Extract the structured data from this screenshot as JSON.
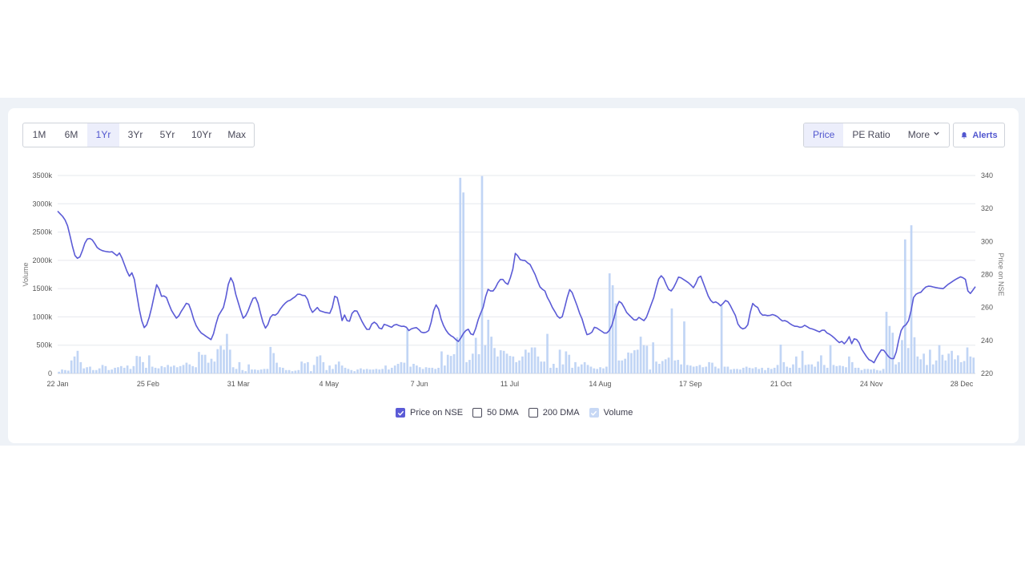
{
  "toolbar": {
    "ranges": [
      "1M",
      "6M",
      "1Yr",
      "3Yr",
      "5Yr",
      "10Yr",
      "Max"
    ],
    "active_range": "1Yr",
    "metrics": {
      "price": "Price",
      "pe": "PE Ratio",
      "more": "More"
    },
    "alerts_label": "Alerts"
  },
  "legend": {
    "price": "Price on NSE",
    "dma50": "50 DMA",
    "dma200": "200 DMA",
    "volume": "Volume"
  },
  "colors": {
    "price_line": "#5b5bd6",
    "volume_bar": "#c1d5f5",
    "accent": "#5257cf"
  },
  "chart_data": {
    "type": "line",
    "x_ticks": [
      "22 Jan",
      "25 Feb",
      "31 Mar",
      "4 May",
      "7 Jun",
      "11 Jul",
      "14 Aug",
      "17 Sep",
      "21 Oct",
      "24 Nov",
      "28 Dec"
    ],
    "y_left": {
      "label": "Volume",
      "ticks": [
        "0",
        "500k",
        "1000k",
        "1500k",
        "2000k",
        "2500k",
        "3000k",
        "3500k"
      ],
      "range": [
        0,
        3500
      ]
    },
    "y_right": {
      "label": "Price on NSE",
      "ticks": [
        "220",
        "240",
        "260",
        "280",
        "300",
        "320",
        "340"
      ],
      "range": [
        220,
        340
      ]
    },
    "series": [
      {
        "name": "Price on NSE",
        "axis": "right",
        "values": [
          318.4,
          316.8,
          315.2,
          313.0,
          309.5,
          303.5,
          297.0,
          291.5,
          289.8,
          290.7,
          294.5,
          299.0,
          301.5,
          301.8,
          301.0,
          298.8,
          296.3,
          295.2,
          294.5,
          294.1,
          293.8,
          293.6,
          293.8,
          292.6,
          291.4,
          293.0,
          290.0,
          286.0,
          282.0,
          279.0,
          281.0,
          277.0,
          268.0,
          259.0,
          252.0,
          247.8,
          249.5,
          254.0,
          260.0,
          267.0,
          273.8,
          271.3,
          266.8,
          267.0,
          266.0,
          262.0,
          258.3,
          255.8,
          253.5,
          255.0,
          257.7,
          260.0,
          262.5,
          262.0,
          258.0,
          252.8,
          249.0,
          246.5,
          244.6,
          243.6,
          242.5,
          241.5,
          240.5,
          244.0,
          250.0,
          255.0,
          257.5,
          260.0,
          266.0,
          274.0,
          278.0,
          275.0,
          268.0,
          263.0,
          258.0,
          253.5,
          255.0,
          258.0,
          262.0,
          265.5,
          266.0,
          262.5,
          256.5,
          251.0,
          247.5,
          249.7,
          254.0,
          255.6,
          255.3,
          256.6,
          259.0,
          261.0,
          262.6,
          263.8,
          264.4,
          265.5,
          266.5,
          268.0,
          268.0,
          267.3,
          267.2,
          265.0,
          260.0,
          257.0,
          258.5,
          260.0,
          258.0,
          257.5,
          257.0,
          256.8,
          256.5,
          260.0,
          266.8,
          266.0,
          260.0,
          252.0,
          255.4,
          252.0,
          251.7,
          256.4,
          258.0,
          257.8,
          254.8,
          251.7,
          249.0,
          246.7,
          246.7,
          250.0,
          251.1,
          250.0,
          247.5,
          247.0,
          249.8,
          249.3,
          248.6,
          248.0,
          249.3,
          249.7,
          249.0,
          248.5,
          248.6,
          248.0,
          246.0,
          247.0,
          247.5,
          247.8,
          246.6,
          245.0,
          244.7,
          245.0,
          246.0,
          251.0,
          258.0,
          261.6,
          259.0,
          253.0,
          249.0,
          246.2,
          244.1,
          242.9,
          242.0,
          240.5,
          239.4,
          241.5,
          244.2,
          246.0,
          246.8,
          244.0,
          243.4,
          247.2,
          252.5,
          256.5,
          260.0,
          266.5,
          271.0,
          270.0,
          270.0,
          272.0,
          275.0,
          277.0,
          277.0,
          275.0,
          274.0,
          278.0,
          283.2,
          292.8,
          291.3,
          289.0,
          288.6,
          288.4,
          287.0,
          286.0,
          283.0,
          280.0,
          276.0,
          272.5,
          271.0,
          270.0,
          266.0,
          263.3,
          260.0,
          257.5,
          254.8,
          253.5,
          254.4,
          260.0,
          266.0,
          270.8,
          269.0,
          265.0,
          261.0,
          256.5,
          253.0,
          248.0,
          243.5,
          244.0,
          245.0,
          248.0,
          247.5,
          246.5,
          245.5,
          244.5,
          244.5,
          246.0,
          249.0,
          254.0,
          260.3,
          263.7,
          262.6,
          260.0,
          257.0,
          255.5,
          254.0,
          252.5,
          252.4,
          254.0,
          253.0,
          252.0,
          254.0,
          258.0,
          262.0,
          266.0,
          272.0,
          277.3,
          279.2,
          277.6,
          274.0,
          270.9,
          270.0,
          272.0,
          275.0,
          278.4,
          278.0,
          277.0,
          276.0,
          275.0,
          273.6,
          272.0,
          274.5,
          278.0,
          279.0,
          275.0,
          271.0,
          267.0,
          264.3,
          262.9,
          263.4,
          262.5,
          261.0,
          262.4,
          264.2,
          263.5,
          261.0,
          258.0,
          255.1,
          250.0,
          248.0,
          247.0,
          247.6,
          249.5,
          257.0,
          262.4,
          260.9,
          260.0,
          256.8,
          255.3,
          255.4,
          255.1,
          255.2,
          255.7,
          255.2,
          254.4,
          253.0,
          251.8,
          252.0,
          251.4,
          250.2,
          249.3,
          248.6,
          248.5,
          248.0,
          248.2,
          249.2,
          248.3,
          247.4,
          247.0,
          246.5,
          245.8,
          245.2,
          246.2,
          246.2,
          244.6,
          243.8,
          242.8,
          241.5,
          240.0,
          238.7,
          239.5,
          238.0,
          239.7,
          242.3,
          238.0,
          241.0,
          240.6,
          238.6,
          234.8,
          232.5,
          230.2,
          228.3,
          227.7,
          226.5,
          229.4,
          232.0,
          234.3,
          234.0,
          232.0,
          230.0,
          229.0,
          229.0,
          233.0,
          240.0,
          246.0,
          248.5,
          249.6,
          252.0,
          258.0,
          266.0,
          268.0,
          268.8,
          269.2,
          271.0,
          272.4,
          272.9,
          272.8,
          272.4,
          272.1,
          271.8,
          271.6,
          271.4,
          272.7,
          274.0,
          275.0,
          276.0,
          277.0,
          277.8,
          278.6,
          278.0,
          277.0,
          270.0,
          268.5,
          270.5,
          272.6
        ]
      },
      {
        "name": "Volume",
        "axis": "left",
        "unit": "k",
        "values": [
          30,
          70,
          60,
          50,
          230,
          300,
          400,
          200,
          90,
          110,
          120,
          60,
          60,
          90,
          150,
          130,
          60,
          70,
          100,
          110,
          130,
          100,
          140,
          80,
          130,
          310,
          300,
          200,
          100,
          320,
          120,
          100,
          90,
          130,
          110,
          150,
          120,
          140,
          110,
          130,
          150,
          190,
          160,
          130,
          110,
          380,
          330,
          330,
          190,
          260,
          210,
          430,
          490,
          420,
          700,
          420,
          110,
          80,
          200,
          60,
          40,
          160,
          70,
          70,
          60,
          70,
          80,
          80,
          470,
          360,
          190,
          110,
          100,
          60,
          60,
          40,
          50,
          60,
          210,
          180,
          200,
          40,
          150,
          300,
          320,
          200,
          60,
          140,
          80,
          160,
          210,
          140,
          100,
          80,
          60,
          40,
          70,
          90,
          70,
          80,
          70,
          70,
          80,
          70,
          80,
          140,
          70,
          100,
          140,
          170,
          200,
          190,
          780,
          120,
          170,
          140,
          110,
          80,
          110,
          100,
          100,
          80,
          100,
          390,
          140,
          330,
          310,
          340,
          640,
          3460,
          3200,
          200,
          240,
          350,
          630,
          340,
          3490,
          500,
          950,
          650,
          450,
          300,
          410,
          400,
          350,
          310,
          300,
          200,
          230,
          300,
          420,
          370,
          460,
          460,
          300,
          210,
          210,
          700,
          100,
          170,
          100,
          420,
          160,
          390,
          330,
          100,
          200,
          120,
          160,
          200,
          150,
          120,
          90,
          80,
          110,
          90,
          120,
          1770,
          1560,
          1240,
          230,
          230,
          260,
          370,
          360,
          410,
          420,
          650,
          500,
          490,
          70,
          550,
          210,
          170,
          220,
          250,
          280,
          1150,
          230,
          240,
          160,
          920,
          150,
          140,
          120,
          130,
          150,
          110,
          120,
          200,
          190,
          120,
          90,
          1200,
          120,
          120,
          70,
          80,
          80,
          70,
          100,
          120,
          100,
          90,
          110,
          80,
          100,
          60,
          100,
          80,
          100,
          150,
          510,
          200,
          120,
          100,
          160,
          300,
          100,
          400,
          150,
          160,
          160,
          120,
          210,
          320,
          150,
          100,
          500,
          150,
          130,
          140,
          130,
          110,
          300,
          200,
          100,
          100,
          60,
          80,
          80,
          70,
          80,
          60,
          50,
          80,
          1090,
          840,
          720,
          160,
          200,
          590,
          2370,
          450,
          2620,
          640,
          300,
          250,
          350,
          150,
          420,
          160,
          230,
          500,
          330,
          230,
          350,
          400,
          250,
          320,
          200,
          220,
          460,
          300,
          280
        ]
      }
    ]
  }
}
